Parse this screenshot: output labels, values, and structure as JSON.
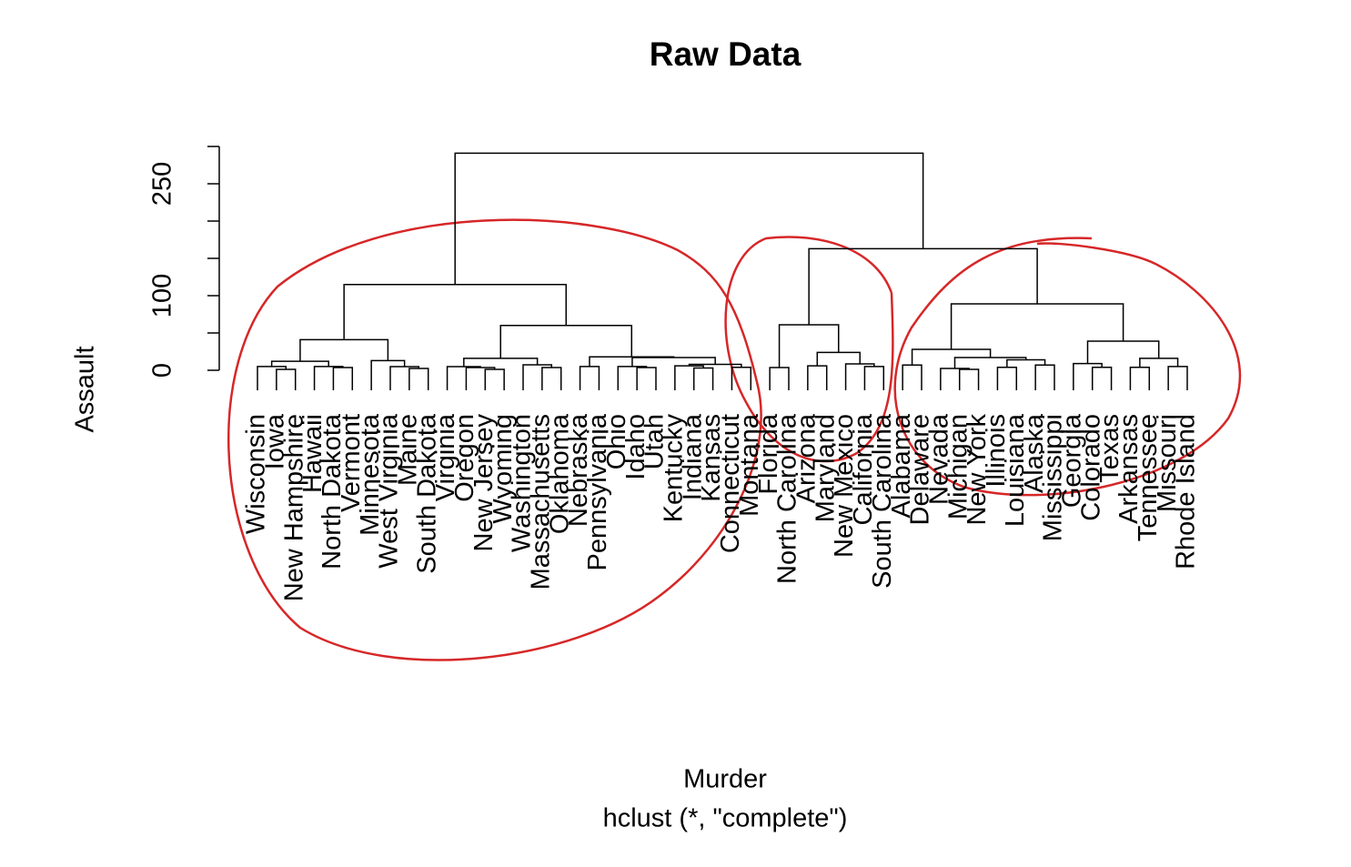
{
  "chart_data": {
    "type": "dendrogram",
    "title": "Raw Data",
    "xlabel": "Murder",
    "subtitle": "hclust (*, \"complete\")",
    "ylabel": "Assault",
    "ylim": [
      0,
      300
    ],
    "yticks": [
      0,
      100,
      250
    ],
    "yticks_minor": [
      50,
      150,
      200,
      300
    ],
    "color": "#000000",
    "labels": [
      "Wisconsin",
      "Iowa",
      "New Hampshire",
      "Hawaii",
      "North Dakota",
      "Vermont",
      "Minnesota",
      "West Virginia",
      "Maine",
      "South Dakota",
      "Virginia",
      "Oregon",
      "New Jersey",
      "Wyoming",
      "Washington",
      "Massachusetts",
      "Oklahoma",
      "Nebraska",
      "Pennsylvania",
      "Ohio",
      "Idaho",
      "Utah",
      "Kentucky",
      "Indiana",
      "Kansas",
      "Connecticut",
      "Montana",
      "Florida",
      "North Carolina",
      "Arizona",
      "Maryland",
      "New Mexico",
      "California",
      "South Carolina",
      "Alabama",
      "Delaware",
      "Nevada",
      "Michigan",
      "New York",
      "Illinois",
      "Louisiana",
      "Alaska",
      "Mississippi",
      "Georgia",
      "Colorado",
      "Texas",
      "Arkansas",
      "Tennessee",
      "Missouri",
      "Rhode Island"
    ],
    "tree": {
      "height": 291,
      "children": [
        {
          "height": 115,
          "children": [
            {
              "height": 41,
              "children": [
                {
                  "height": 12,
                  "children": [
                    {
                      "height": 5,
                      "children": [
                        0,
                        {
                          "height": 1.2,
                          "children": [
                            1,
                            2
                          ]
                        }
                      ]
                    },
                    {
                      "height": 5,
                      "children": [
                        3,
                        {
                          "height": 3.7,
                          "children": [
                            4,
                            5
                          ]
                        }
                      ]
                    }
                  ]
                },
                {
                  "height": 13,
                  "children": [
                    6,
                    {
                      "height": 4.9,
                      "children": [
                        7,
                        {
                          "height": 2.4,
                          "children": [
                            8,
                            9
                          ]
                        }
                      ]
                    }
                  ]
                }
              ]
            },
            {
              "height": 60,
              "children": [
                {
                  "height": 16,
                  "children": [
                    {
                      "height": 4.9,
                      "children": [
                        10,
                        {
                          "height": 3.7,
                          "children": [
                            11,
                            {
                              "height": 1.2,
                              "children": [
                                12,
                                13
                              ]
                            }
                          ]
                        }
                      ]
                    },
                    {
                      "height": 7.3,
                      "children": [
                        14,
                        {
                          "height": 3.7,
                          "children": [
                            15,
                            16
                          ]
                        }
                      ]
                    }
                  ]
                },
                {
                  "height": 18,
                  "children": [
                    {
                      "height": 5,
                      "children": [
                        17,
                        18
                      ]
                    },
                    {
                      "height": 17,
                      "children": [
                        {
                          "height": 5,
                          "children": [
                            19,
                            {
                              "height": 3.7,
                              "children": [
                                20,
                                21
                              ]
                            }
                          ]
                        },
                        {
                          "height": 8,
                          "children": [
                            {
                              "height": 6,
                              "children": [
                                22,
                                {
                                  "height": 3,
                                  "children": [
                                    23,
                                    24
                                  ]
                                }
                              ]
                            },
                            {
                              "height": 4,
                              "children": [
                                25,
                                26
                              ]
                            }
                          ]
                        }
                      ]
                    }
                  ]
                }
              ]
            }
          ]
        },
        {
          "height": 163,
          "children": [
            {
              "height": 61,
              "children": [
                {
                  "height": 3.7,
                  "children": [
                    27,
                    28
                  ]
                },
                {
                  "height": 24,
                  "children": [
                    {
                      "height": 6,
                      "children": [
                        29,
                        30
                      ]
                    },
                    {
                      "height": 8.5,
                      "children": [
                        31,
                        {
                          "height": 5,
                          "children": [
                            32,
                            33
                          ]
                        }
                      ]
                    }
                  ]
                }
              ]
            },
            {
              "height": 89,
              "children": [
                {
                  "height": 28,
                  "children": [
                    {
                      "height": 7,
                      "children": [
                        34,
                        35
                      ]
                    },
                    {
                      "height": 17,
                      "children": [
                        {
                          "height": 2.4,
                          "children": [
                            36,
                            {
                              "height": 1.2,
                              "children": [
                                37,
                                38
                              ]
                            }
                          ]
                        },
                        {
                          "height": 14,
                          "children": [
                            {
                              "height": 4,
                              "children": [
                                39,
                                40
                              ]
                            },
                            {
                              "height": 7,
                              "children": [
                                41,
                                42
                              ]
                            }
                          ]
                        }
                      ]
                    }
                  ]
                },
                {
                  "height": 39,
                  "children": [
                    {
                      "height": 9,
                      "children": [
                        43,
                        {
                          "height": 4,
                          "children": [
                            44,
                            45
                          ]
                        }
                      ]
                    },
                    {
                      "height": 16,
                      "children": [
                        {
                          "height": 4,
                          "children": [
                            46,
                            47
                          ]
                        },
                        {
                          "height": 5,
                          "children": [
                            48,
                            49
                          ]
                        }
                      ]
                    }
                  ]
                }
              ]
            }
          ]
        }
      ]
    }
  }
}
